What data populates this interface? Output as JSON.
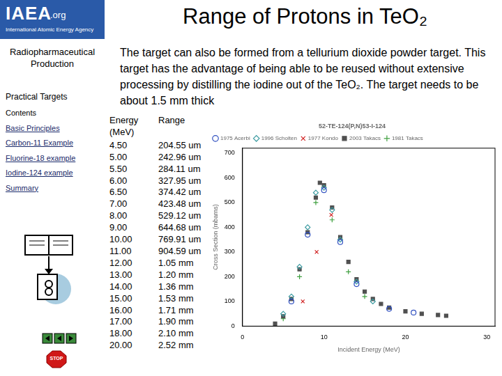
{
  "header": {
    "logo": {
      "name": "IAEA",
      "suffix": ".org",
      "subtitle": "International Atomic Energy Agency"
    },
    "title": "Range of Protons in TeO₂"
  },
  "sidebar": {
    "section": "Radiopharmaceutical Production",
    "subsection": "Practical Targets",
    "links": [
      "Contents",
      "Basic Principles",
      "Carbon-11 Example",
      "Fluorine-18 example",
      "Iodine-124 example",
      "Summary"
    ],
    "stop": "STOP"
  },
  "text": "The target can also be formed from a tellurium dioxide powder target.  This target has the advantage of being able to be reused without extensive processing by distilling the iodine out of the TeO₂. The target needs to be about 1.5 mm thick",
  "table": {
    "header": [
      "Energy (MeV)",
      "Range"
    ],
    "rows": [
      [
        "4.50",
        "204.55 um"
      ],
      [
        "5.00",
        "242.96 um"
      ],
      [
        "5.50",
        "284.11 um"
      ],
      [
        "6.00",
        "327.95 um"
      ],
      [
        "6.50",
        "374.42 um"
      ],
      [
        "7.00",
        "423.48 um"
      ],
      [
        "8.00",
        "529.12 um"
      ],
      [
        "9.00",
        "644.68 um"
      ],
      [
        "10.00",
        "769.91 um"
      ],
      [
        "11.00",
        "904.59 um"
      ],
      [
        "12.00",
        "1.05 mm"
      ],
      [
        "13.00",
        "1.20 mm"
      ],
      [
        "14.00",
        "1.36 mm"
      ],
      [
        "15.00",
        "1.53 mm"
      ],
      [
        "16.00",
        "1.71 mm"
      ],
      [
        "17.00",
        "1.90 mm"
      ],
      [
        "18.00",
        "2.10 mm"
      ],
      [
        "20.00",
        "2.52 mm"
      ]
    ]
  },
  "chart_data": {
    "type": "scatter",
    "title": "52-TE-124(P,N)53-I-124",
    "x_label": "Incident Energy (MeV)",
    "y_label": "Cross Section (mbarns)",
    "xlim": [
      0,
      31
    ],
    "xticks": [
      0,
      10,
      20,
      30
    ],
    "ylim": [
      0,
      720
    ],
    "yticks": [
      0,
      100,
      200,
      300,
      400,
      500,
      600,
      700
    ],
    "grid": false,
    "legend": "top",
    "series": [
      {
        "name": "1975 Acerbi",
        "color": "#3050c0",
        "marker": "circle",
        "x": [
          6,
          8,
          10,
          12,
          14,
          18,
          21
        ],
        "values": [
          100,
          370,
          550,
          340,
          170,
          70,
          55
        ]
      },
      {
        "name": "1996 Scholten",
        "color": "#3a9aa0",
        "marker": "rectRot",
        "x": [
          5,
          6,
          7,
          8,
          9,
          10,
          11,
          12,
          14,
          16
        ],
        "values": [
          50,
          120,
          240,
          400,
          540,
          560,
          470,
          350,
          180,
          100
        ]
      },
      {
        "name": "1977 Kondo",
        "color": "#d02020",
        "marker": "crossRot",
        "x": [
          7.4,
          9.1,
          10.9
        ],
        "values": [
          100,
          300,
          450
        ]
      },
      {
        "name": "2003 Takacs",
        "color": "#505050",
        "marker": "rect",
        "x": [
          4,
          5,
          6,
          7,
          8,
          9,
          9.5,
          10,
          11,
          12,
          13,
          14,
          15,
          16,
          17,
          18,
          20,
          22,
          24,
          25
        ],
        "values": [
          10,
          40,
          110,
          230,
          380,
          520,
          580,
          570,
          480,
          360,
          260,
          190,
          140,
          110,
          90,
          75,
          60,
          50,
          45,
          42
        ]
      },
      {
        "name": "1981 Takacs",
        "color": "#40a040",
        "marker": "cross",
        "x": [
          5,
          7,
          9,
          11,
          13,
          15
        ],
        "values": [
          30,
          200,
          500,
          430,
          220,
          120
        ]
      }
    ]
  }
}
